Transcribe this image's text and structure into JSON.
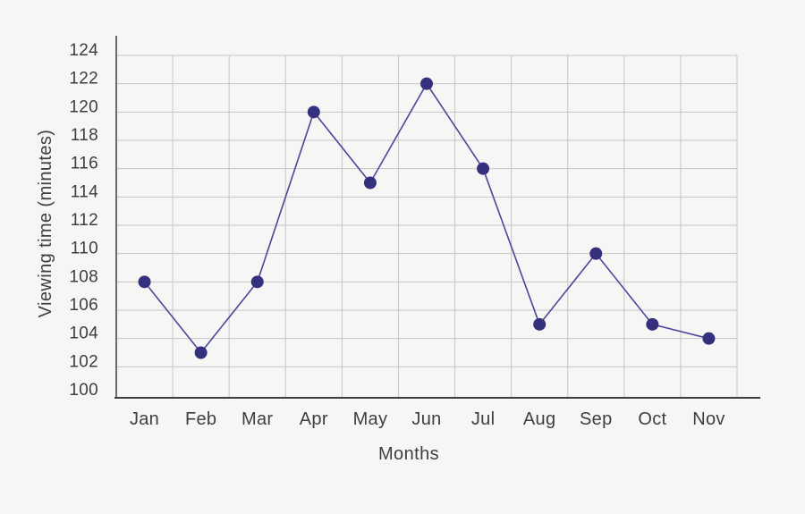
{
  "figure": {
    "background": "#f6f6f5"
  },
  "chart_data": {
    "type": "line",
    "title": "",
    "xlabel": "Months",
    "ylabel": "Viewing time (minutes)",
    "categories": [
      "Jan",
      "Feb",
      "Mar",
      "Apr",
      "May",
      "Jun",
      "Jul",
      "Aug",
      "Sep",
      "Oct",
      "Nov"
    ],
    "values": [
      108,
      103,
      108,
      120,
      115,
      122,
      116,
      105,
      110,
      105,
      104
    ],
    "y_ticks": [
      100,
      102,
      104,
      106,
      108,
      110,
      112,
      114,
      116,
      118,
      120,
      122,
      124
    ],
    "ylim": [
      100,
      125.4
    ],
    "grid": "both",
    "legend": "none",
    "marker": "circle",
    "colors": {
      "line": "#4c4699",
      "marker": "#35307d",
      "grid": "#c6c6c6",
      "axis": "#3e3e3e",
      "text": "#3e3e3e",
      "background": "#f6f6f5"
    }
  }
}
